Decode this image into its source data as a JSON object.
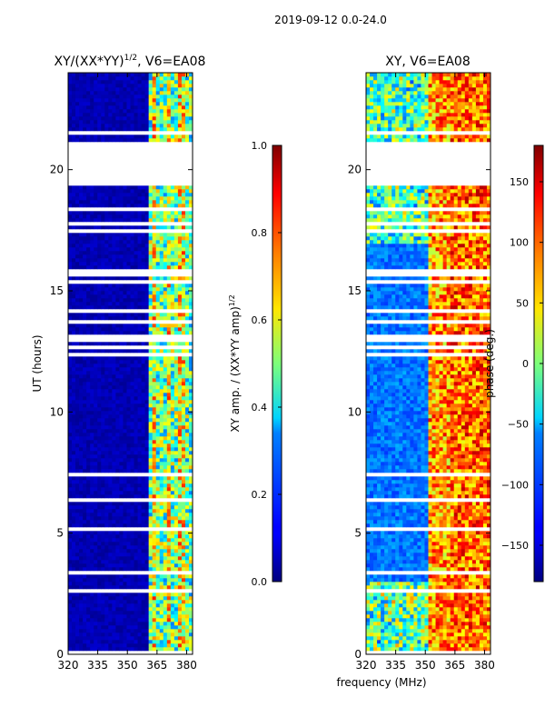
{
  "suptitle": "2019-09-12 0.0-24.0",
  "xlabel_shared": "frequency (MHz)",
  "chart_data": [
    {
      "type": "heatmap",
      "title": "XY/(XX*YY)",
      "title_sup": "1/2",
      "title_suffix": ", V6=EA08",
      "ylabel": "UT (hours)",
      "xlim": [
        320,
        383
      ],
      "ylim": [
        0,
        24
      ],
      "xticks": [
        320,
        335,
        350,
        365,
        380
      ],
      "yticks": [
        0,
        5,
        10,
        15,
        20
      ],
      "bright_band_mhz": [
        360,
        383
      ],
      "gap_hours": [
        19.4,
        21.0
      ],
      "colorbar": {
        "label": "XY amp. / (XX*YY amp)",
        "label_sup": "1/2",
        "range": [
          0.0,
          1.0
        ],
        "ticks": [
          "0.0",
          "0.2",
          "0.4",
          "0.6",
          "0.8",
          "1.0"
        ],
        "colormap": "jet"
      }
    },
    {
      "type": "heatmap",
      "title": "XY, V6=EA08",
      "ylabel": "",
      "xlim": [
        320,
        383
      ],
      "ylim": [
        0,
        24
      ],
      "xticks": [
        320,
        335,
        350,
        365,
        380
      ],
      "yticks": [
        0,
        5,
        10,
        15,
        20
      ],
      "gap_hours": [
        19.4,
        21.0
      ],
      "colorbar": {
        "label": "phase (deg.)",
        "range": [
          -180,
          180
        ],
        "ticks": [
          "−150",
          "−100",
          "−50",
          "0",
          "50",
          "100",
          "150"
        ],
        "colormap": "jet"
      }
    }
  ]
}
